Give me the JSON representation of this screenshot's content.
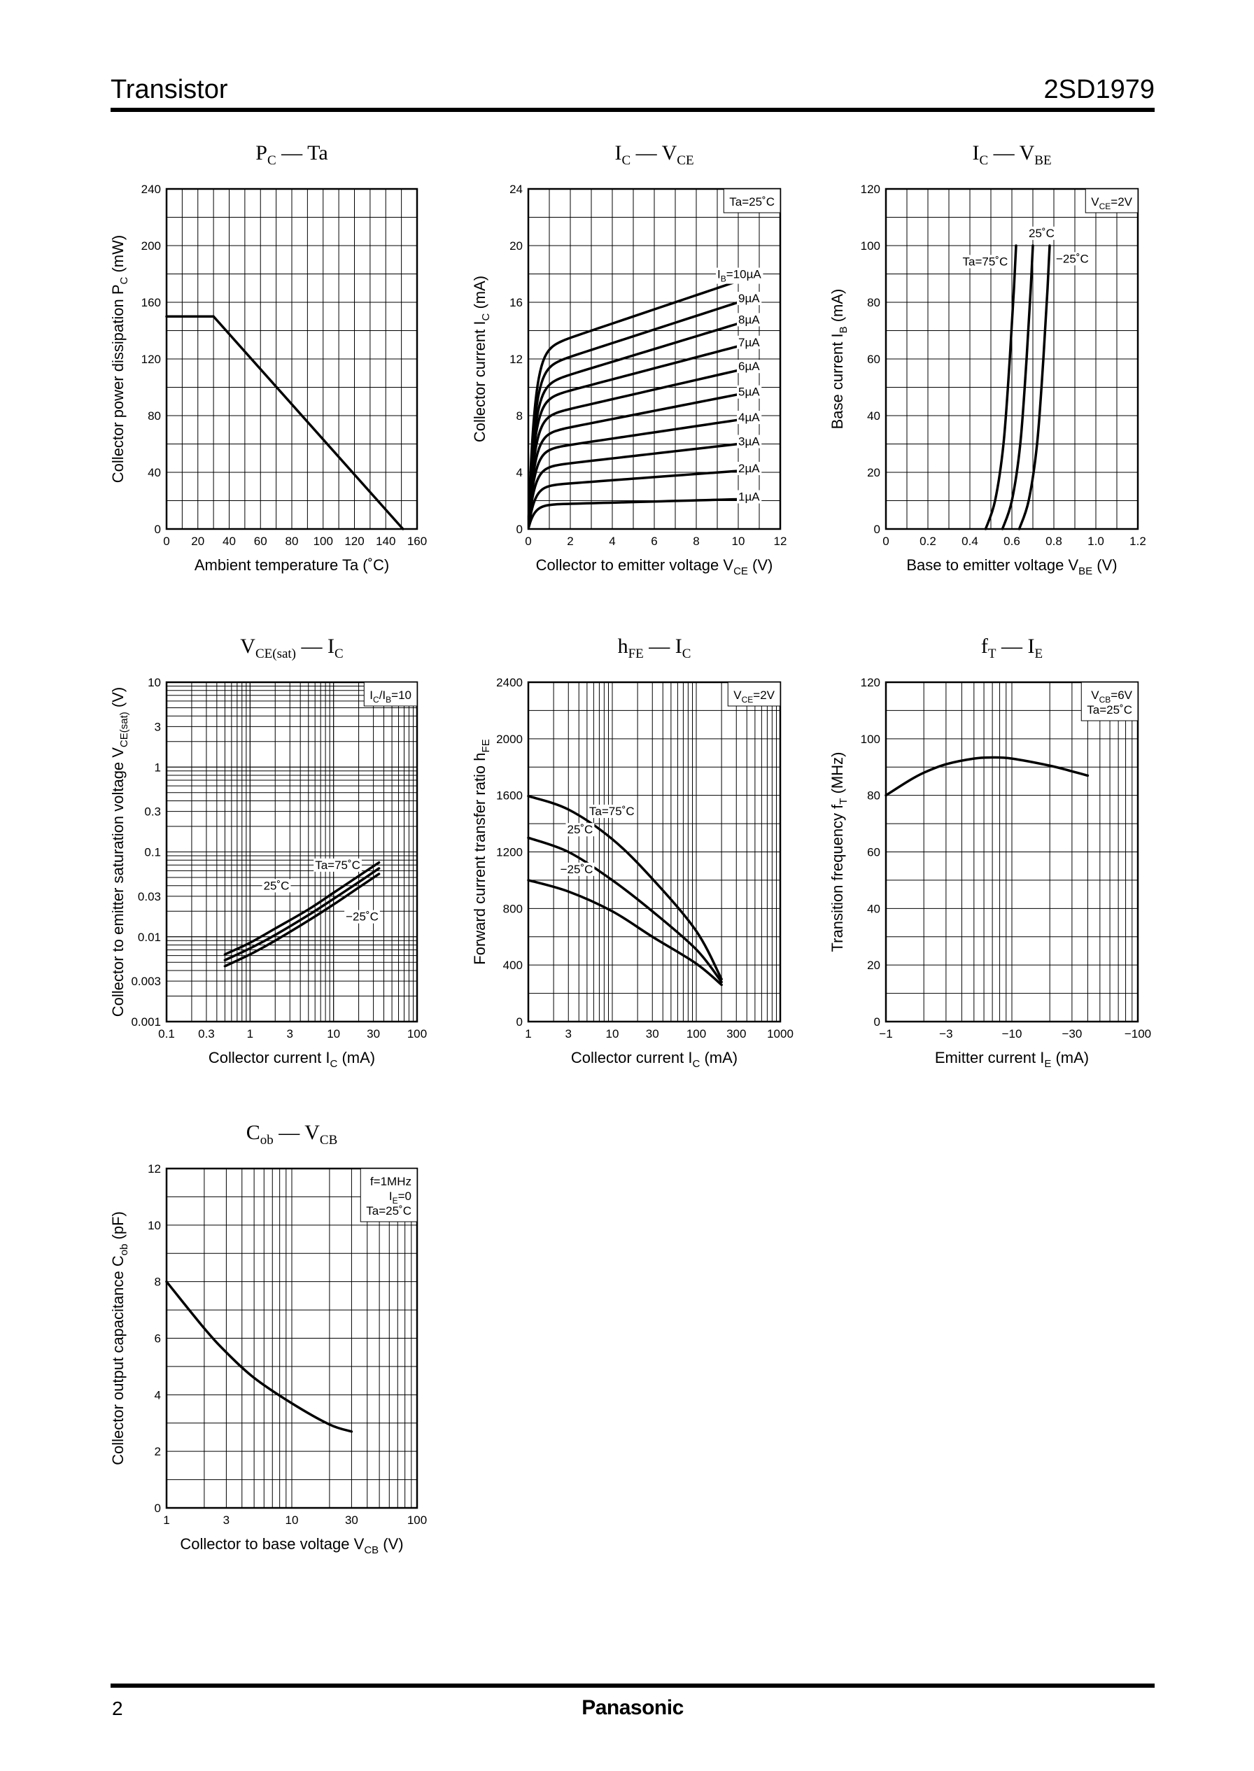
{
  "header": {
    "title": "Transistor",
    "part_number": "2SD1979"
  },
  "footer": {
    "page_number": "2",
    "brand": "Panasonic"
  },
  "chart_data": [
    {
      "id": "pc-ta",
      "type": "line",
      "title_main": "P",
      "title_sub": "C",
      "title_rest": " — Ta",
      "xlabel": "Ambient temperature   Ta   (˚C)",
      "ylabel_text": "Collector power dissipation   P",
      "ylabel_sub": "C",
      "ylabel_unit": "   (mW)",
      "xscale": "lin",
      "yscale": "lin",
      "xlim": [
        0,
        160
      ],
      "ylim": [
        0,
        240
      ],
      "xticks": [
        0,
        20,
        40,
        60,
        80,
        100,
        120,
        140,
        160
      ],
      "xticklabels": [
        "0",
        "20",
        "40",
        "60",
        "80",
        "100",
        "120",
        "140",
        "160"
      ],
      "yticks": [
        0,
        40,
        80,
        120,
        160,
        200,
        240
      ],
      "yticklabels": [
        "0",
        "40",
        "80",
        "120",
        "160",
        "200",
        "240"
      ],
      "series": [
        {
          "name": "PC",
          "points": [
            [
              0,
              150
            ],
            [
              30,
              150
            ],
            [
              151,
              0
            ]
          ]
        }
      ],
      "annotations": []
    },
    {
      "id": "ic-vce",
      "type": "line",
      "title_main": "I",
      "title_sub": "C",
      "title_rest": " — V",
      "title_sub2": "CE",
      "xlabel": "Collector to emitter voltage   V",
      "xlabel_sub": "CE",
      "xlabel_unit": "   (V)",
      "ylabel_text": "Collector current   I",
      "ylabel_sub": "C",
      "ylabel_unit": "   (mA)",
      "xscale": "lin",
      "yscale": "lin",
      "xlim": [
        0,
        12
      ],
      "ylim": [
        0,
        24
      ],
      "xticks": [
        0,
        2,
        4,
        6,
        8,
        10,
        12
      ],
      "xticklabels": [
        "0",
        "2",
        "4",
        "6",
        "8",
        "10",
        "12"
      ],
      "yticks": [
        0,
        4,
        8,
        12,
        16,
        20,
        24
      ],
      "yticklabels": [
        "0",
        "4",
        "8",
        "12",
        "16",
        "20",
        "24"
      ],
      "series": [
        {
          "name": "IB=1µA",
          "sat": 1.7,
          "end": 2.1
        },
        {
          "name": "IB=2µA",
          "sat": 3.0,
          "end": 4.1
        },
        {
          "name": "IB=3µA",
          "sat": 4.3,
          "end": 6.0
        },
        {
          "name": "IB=4µA",
          "sat": 5.5,
          "end": 7.7
        },
        {
          "name": "IB=5µA",
          "sat": 6.6,
          "end": 9.5
        },
        {
          "name": "IB=6µA",
          "sat": 7.8,
          "end": 11.2
        },
        {
          "name": "IB=7µA",
          "sat": 9.0,
          "end": 12.9
        },
        {
          "name": "IB=8µA",
          "sat": 10.0,
          "end": 14.5
        },
        {
          "name": "IB=9µA",
          "sat": 11.2,
          "end": 16.0
        },
        {
          "name": "IB=10µA",
          "sat": 12.5,
          "end": 17.5
        }
      ],
      "annotations": [
        {
          "text": "Ta=25˚C",
          "pos": "top-right",
          "box": true
        },
        {
          "text": "I",
          "sub": "B",
          "rest": "=10µA",
          "at": [
            9.0,
            17.7
          ]
        },
        {
          "text": "9µA",
          "at": [
            10.0,
            16.0
          ]
        },
        {
          "text": "8µA",
          "at": [
            10.0,
            14.5
          ]
        },
        {
          "text": "7µA",
          "at": [
            10.0,
            12.9
          ]
        },
        {
          "text": "6µA",
          "at": [
            10.0,
            11.2
          ]
        },
        {
          "text": "5µA",
          "at": [
            10.0,
            9.4
          ]
        },
        {
          "text": "4µA",
          "at": [
            10.0,
            7.6
          ]
        },
        {
          "text": "3µA",
          "at": [
            10.0,
            5.9
          ]
        },
        {
          "text": "2µA",
          "at": [
            10.0,
            4.0
          ]
        },
        {
          "text": "1µA",
          "at": [
            10.0,
            2.0
          ]
        }
      ]
    },
    {
      "id": "ic-vbe",
      "type": "line",
      "title_main": "I",
      "title_sub": "C",
      "title_rest": " — V",
      "title_sub2": "BE",
      "xlabel": "Base to emitter voltage   V",
      "xlabel_sub": "BE",
      "xlabel_unit": "   (V)",
      "ylabel_text": "Base current   I",
      "ylabel_sub": "B",
      "ylabel_unit": "   (mA)",
      "xscale": "lin",
      "yscale": "lin",
      "xlim": [
        0,
        1.2
      ],
      "ylim": [
        0,
        120
      ],
      "xticks": [
        0,
        0.2,
        0.4,
        0.6,
        0.8,
        1.0,
        1.2
      ],
      "xticklabels": [
        "0",
        "0.2",
        "0.4",
        "0.6",
        "0.8",
        "1.0",
        "1.2"
      ],
      "yticks": [
        0,
        20,
        40,
        60,
        80,
        100,
        120
      ],
      "yticklabels": [
        "0",
        "20",
        "40",
        "60",
        "80",
        "100",
        "120"
      ],
      "series": [
        {
          "name": "Ta=75˚C",
          "points": [
            [
              0.475,
              0
            ],
            [
              0.52,
              10
            ],
            [
              0.56,
              30
            ],
            [
              0.59,
              60
            ],
            [
              0.61,
              85
            ],
            [
              0.62,
              100
            ]
          ]
        },
        {
          "name": "25˚C",
          "points": [
            [
              0.555,
              0
            ],
            [
              0.6,
              10
            ],
            [
              0.64,
              30
            ],
            [
              0.67,
              60
            ],
            [
              0.69,
              85
            ],
            [
              0.7,
              100
            ]
          ]
        },
        {
          "name": "−25˚C",
          "points": [
            [
              0.635,
              0
            ],
            [
              0.68,
              10
            ],
            [
              0.72,
              30
            ],
            [
              0.75,
              60
            ],
            [
              0.77,
              85
            ],
            [
              0.78,
              100
            ]
          ]
        }
      ],
      "annotations": [
        {
          "text": "V",
          "sub": "CE",
          "rest": "=2V",
          "pos": "top-right",
          "box": true
        },
        {
          "text": "Ta=75˚C",
          "at": [
            0.365,
            93
          ]
        },
        {
          "text": "25˚C",
          "at": [
            0.68,
            103
          ]
        },
        {
          "text": "−25˚C",
          "at": [
            0.81,
            94
          ]
        }
      ]
    },
    {
      "id": "vcesat-ic",
      "type": "line",
      "title_main": "V",
      "title_sub": "CE(sat)",
      "title_rest": " — I",
      "title_sub2": "C",
      "xlabel": "Collector current   I",
      "xlabel_sub": "C",
      "xlabel_unit": "   (mA)",
      "ylabel_text": "Collector to emitter saturation voltage   V",
      "ylabel_sub": "CE(sat)",
      "ylabel_unit": "   (V)",
      "xscale": "log",
      "yscale": "log",
      "xlim": [
        0.1,
        100
      ],
      "ylim": [
        0.001,
        10
      ],
      "xticks": [
        0.1,
        0.3,
        1,
        3,
        10,
        30,
        100
      ],
      "xticklabels": [
        "0.1",
        "0.3",
        "1",
        "3",
        "10",
        "30",
        "100"
      ],
      "yticks": [
        0.001,
        0.003,
        0.01,
        0.03,
        0.1,
        0.3,
        1,
        3,
        10
      ],
      "yticklabels": [
        "0.001",
        "0.003",
        "0.01",
        "0.03",
        "0.1",
        "0.3",
        "1",
        "3",
        "10"
      ],
      "series": [
        {
          "name": "Ta=75˚C",
          "points": [
            [
              0.5,
              0.0062
            ],
            [
              1,
              0.0085
            ],
            [
              2,
              0.0125
            ],
            [
              5,
              0.021
            ],
            [
              10,
              0.033
            ],
            [
              20,
              0.052
            ],
            [
              35,
              0.075
            ]
          ]
        },
        {
          "name": "25˚C",
          "points": [
            [
              0.5,
              0.0053
            ],
            [
              1,
              0.0073
            ],
            [
              2,
              0.0105
            ],
            [
              5,
              0.018
            ],
            [
              10,
              0.028
            ],
            [
              20,
              0.044
            ],
            [
              35,
              0.064
            ]
          ]
        },
        {
          "name": "−25˚C",
          "points": [
            [
              0.5,
              0.0045
            ],
            [
              1,
              0.0062
            ],
            [
              2,
              0.009
            ],
            [
              5,
              0.0155
            ],
            [
              10,
              0.024
            ],
            [
              20,
              0.038
            ],
            [
              35,
              0.055
            ]
          ]
        }
      ],
      "annotations": [
        {
          "text": "I",
          "sub": "C",
          "rest": "/I",
          "sub2": "B",
          "rest2": "=10",
          "pos": "top-right",
          "box": true
        },
        {
          "text": "Ta=75˚C",
          "at": [
            6.0,
            0.063
          ]
        },
        {
          "text": "25˚C",
          "at": [
            1.45,
            0.036
          ]
        },
        {
          "text": "−25˚C",
          "at": [
            14,
            0.0155
          ]
        }
      ]
    },
    {
      "id": "hfe-ic",
      "type": "line",
      "title_main": "h",
      "title_sub": "FE",
      "title_rest": " — I",
      "title_sub2": "C",
      "xlabel": "Collector current   I",
      "xlabel_sub": "C",
      "xlabel_unit": "   (mA)",
      "ylabel_text": "Forward current transfer ratio   h",
      "ylabel_sub": "FE",
      "ylabel_unit": "",
      "xscale": "log",
      "yscale": "lin",
      "xlim": [
        1,
        1000
      ],
      "ylim": [
        0,
        2400
      ],
      "xticks": [
        1,
        3,
        10,
        30,
        100,
        300,
        1000
      ],
      "xticklabels": [
        "1",
        "3",
        "10",
        "30",
        "100",
        "300",
        "1000"
      ],
      "yticks": [
        0,
        400,
        800,
        1200,
        1600,
        2000,
        2400
      ],
      "yticklabels": [
        "0",
        "400",
        "800",
        "1200",
        "1600",
        "2000",
        "2400"
      ],
      "series": [
        {
          "name": "Ta=75˚C",
          "points": [
            [
              1,
              1595
            ],
            [
              3,
              1500
            ],
            [
              10,
              1290
            ],
            [
              30,
              1010
            ],
            [
              100,
              640
            ],
            [
              200,
              300
            ]
          ]
        },
        {
          "name": "25˚C",
          "points": [
            [
              1,
              1300
            ],
            [
              3,
              1200
            ],
            [
              10,
              1000
            ],
            [
              30,
              780
            ],
            [
              100,
              510
            ],
            [
              200,
              280
            ]
          ]
        },
        {
          "name": "−25˚C",
          "points": [
            [
              1,
              1000
            ],
            [
              3,
              920
            ],
            [
              10,
              780
            ],
            [
              30,
              600
            ],
            [
              100,
              410
            ],
            [
              200,
              260
            ]
          ]
        }
      ],
      "annotations": [
        {
          "text": "V",
          "sub": "CE",
          "rest": "=2V",
          "pos": "top-right",
          "box": true
        },
        {
          "text": "Ta=75˚C",
          "at": [
            5.3,
            1460
          ]
        },
        {
          "text": "25˚C",
          "at": [
            2.9,
            1330
          ]
        },
        {
          "text": "−25˚C",
          "at": [
            2.4,
            1050
          ]
        }
      ]
    },
    {
      "id": "ft-ie",
      "type": "line",
      "title_main": "f",
      "title_sub": "T",
      "title_rest": " — I",
      "title_sub2": "E",
      "xlabel": "Emitter current   I",
      "xlabel_sub": "E",
      "xlabel_unit": "   (mA)",
      "ylabel_text": "Transition frequency   f",
      "ylabel_sub": "T",
      "ylabel_unit": "   (MHz)",
      "xscale": "log",
      "yscale": "lin",
      "xlim": [
        1,
        100
      ],
      "ylim": [
        0,
        120
      ],
      "xticks": [
        1,
        3,
        10,
        30,
        100
      ],
      "xticklabels": [
        "−1",
        "−3",
        "−10",
        "−30",
        "−100"
      ],
      "yticks": [
        0,
        20,
        40,
        60,
        80,
        100,
        120
      ],
      "yticklabels": [
        "0",
        "20",
        "40",
        "60",
        "80",
        "100",
        "120"
      ],
      "series": [
        {
          "name": "fT",
          "points": [
            [
              1,
              80
            ],
            [
              1.5,
              85
            ],
            [
              2,
              88
            ],
            [
              3,
              91
            ],
            [
              5,
              93
            ],
            [
              7,
              93.4
            ],
            [
              10,
              93
            ],
            [
              20,
              90.5
            ],
            [
              30,
              88.5
            ],
            [
              40,
              87
            ]
          ]
        }
      ],
      "annotations": [
        {
          "text": "V",
          "sub": "CB",
          "rest": "=6V",
          "line2": "Ta=25˚C",
          "pos": "top-right",
          "box": true
        }
      ]
    },
    {
      "id": "cob-vcb",
      "type": "line",
      "title_main": "C",
      "title_sub": "ob",
      "title_rest": " — V",
      "title_sub2": "CB",
      "xlabel": "Collector to base voltage   V",
      "xlabel_sub": "CB",
      "xlabel_unit": "   (V)",
      "ylabel_text": "Collector output capacitance   C",
      "ylabel_sub": "ob",
      "ylabel_unit": "   (pF)",
      "xscale": "log",
      "yscale": "lin",
      "xlim": [
        1,
        100
      ],
      "ylim": [
        0,
        12
      ],
      "xticks": [
        1,
        3,
        10,
        30,
        100
      ],
      "xticklabels": [
        "1",
        "3",
        "10",
        "30",
        "100"
      ],
      "yticks": [
        0,
        2,
        4,
        6,
        8,
        10,
        12
      ],
      "yticklabels": [
        "0",
        "2",
        "4",
        "6",
        "8",
        "10",
        "12"
      ],
      "series": [
        {
          "name": "Cob",
          "points": [
            [
              1,
              8
            ],
            [
              2,
              6.35
            ],
            [
              3,
              5.5
            ],
            [
              5,
              4.6
            ],
            [
              10,
              3.7
            ],
            [
              20,
              2.95
            ],
            [
              30,
              2.7
            ]
          ]
        }
      ],
      "annotations": [
        {
          "text": "f=1MHz",
          "line2_text": "I",
          "line2_sub": "E",
          "line2_rest": "=0",
          "line3": "Ta=25˚C",
          "pos": "top-right",
          "box": true
        }
      ]
    }
  ]
}
